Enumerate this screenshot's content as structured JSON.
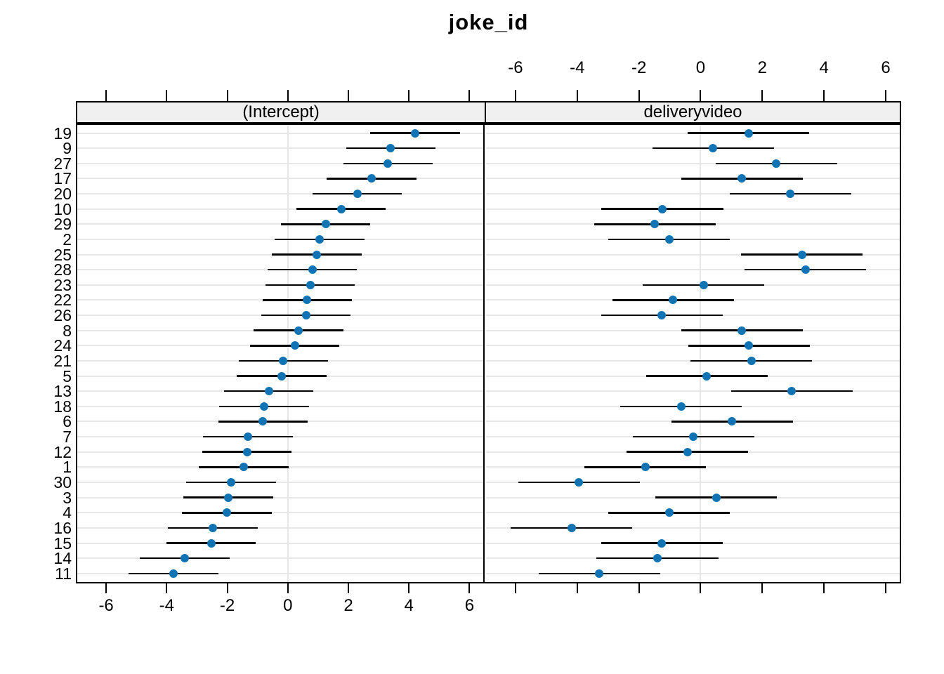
{
  "chart_data": {
    "type": "scatter",
    "subtype": "dotplot-caterpillar-with-error-bars",
    "title": "joke_id",
    "orientation": "horizontal",
    "panels": [
      {
        "label": "(Intercept)",
        "ci_halfwidth": 1.48
      },
      {
        "label": "deliveryvideo",
        "ci_halfwidth": 1.97
      }
    ],
    "x_axis": {
      "ticks": [
        -6,
        -4,
        -2,
        0,
        2,
        4,
        6
      ],
      "tick_labels": [
        "-6",
        "-4",
        "-2",
        "0",
        "2",
        "4",
        "6"
      ],
      "xlim": [
        -7.0,
        6.5
      ],
      "bottom_labels_panel": 0,
      "top_labels_panel": 1
    },
    "y_categories": [
      "19",
      "9",
      "27",
      "17",
      "20",
      "10",
      "29",
      "2",
      "25",
      "28",
      "23",
      "22",
      "26",
      "8",
      "24",
      "21",
      "5",
      "13",
      "18",
      "6",
      "7",
      "12",
      "1",
      "30",
      "3",
      "4",
      "16",
      "15",
      "14",
      "11"
    ],
    "rows": [
      {
        "id": "19",
        "intercept": {
          "lo": 2.73,
          "est": 4.21,
          "hi": 5.69
        },
        "deliveryvideo": {
          "lo": -0.42,
          "est": 1.55,
          "hi": 3.52
        }
      },
      {
        "id": "9",
        "intercept": {
          "lo": 1.92,
          "est": 3.4,
          "hi": 4.88
        },
        "deliveryvideo": {
          "lo": -1.56,
          "est": 0.41,
          "hi": 2.38
        }
      },
      {
        "id": "27",
        "intercept": {
          "lo": 1.83,
          "est": 3.31,
          "hi": 4.79
        },
        "deliveryvideo": {
          "lo": 0.48,
          "est": 2.45,
          "hi": 4.42
        }
      },
      {
        "id": "17",
        "intercept": {
          "lo": 1.28,
          "est": 2.76,
          "hi": 4.24
        },
        "deliveryvideo": {
          "lo": -0.63,
          "est": 1.34,
          "hi": 3.31
        }
      },
      {
        "id": "20",
        "intercept": {
          "lo": 0.81,
          "est": 2.29,
          "hi": 3.77
        },
        "deliveryvideo": {
          "lo": 0.94,
          "est": 2.91,
          "hi": 4.88
        }
      },
      {
        "id": "10",
        "intercept": {
          "lo": 0.28,
          "est": 1.76,
          "hi": 3.24
        },
        "deliveryvideo": {
          "lo": -3.21,
          "est": -1.24,
          "hi": 0.73
        }
      },
      {
        "id": "29",
        "intercept": {
          "lo": -0.23,
          "est": 1.25,
          "hi": 2.73
        },
        "deliveryvideo": {
          "lo": -3.45,
          "est": -1.48,
          "hi": 0.49
        }
      },
      {
        "id": "2",
        "intercept": {
          "lo": -0.43,
          "est": 1.05,
          "hi": 2.53
        },
        "deliveryvideo": {
          "lo": -2.99,
          "est": -1.02,
          "hi": 0.95
        }
      },
      {
        "id": "25",
        "intercept": {
          "lo": -0.52,
          "est": 0.96,
          "hi": 2.44
        },
        "deliveryvideo": {
          "lo": 1.31,
          "est": 3.28,
          "hi": 5.25
        }
      },
      {
        "id": "28",
        "intercept": {
          "lo": -0.67,
          "est": 0.81,
          "hi": 2.29
        },
        "deliveryvideo": {
          "lo": 1.43,
          "est": 3.4,
          "hi": 5.37
        }
      },
      {
        "id": "23",
        "intercept": {
          "lo": -0.74,
          "est": 0.74,
          "hi": 2.22
        },
        "deliveryvideo": {
          "lo": -1.87,
          "est": 0.1,
          "hi": 2.07
        }
      },
      {
        "id": "22",
        "intercept": {
          "lo": -0.84,
          "est": 0.64,
          "hi": 2.12
        },
        "deliveryvideo": {
          "lo": -2.86,
          "est": -0.89,
          "hi": 1.08
        }
      },
      {
        "id": "26",
        "intercept": {
          "lo": -0.88,
          "est": 0.6,
          "hi": 2.08
        },
        "deliveryvideo": {
          "lo": -3.23,
          "est": -1.26,
          "hi": 0.71
        }
      },
      {
        "id": "8",
        "intercept": {
          "lo": -1.12,
          "est": 0.36,
          "hi": 1.84
        },
        "deliveryvideo": {
          "lo": -0.63,
          "est": 1.34,
          "hi": 3.31
        }
      },
      {
        "id": "24",
        "intercept": {
          "lo": -1.25,
          "est": 0.23,
          "hi": 1.71
        },
        "deliveryvideo": {
          "lo": -0.4,
          "est": 1.57,
          "hi": 3.54
        }
      },
      {
        "id": "21",
        "intercept": {
          "lo": -1.63,
          "est": -0.15,
          "hi": 1.33
        },
        "deliveryvideo": {
          "lo": -0.32,
          "est": 1.65,
          "hi": 3.62
        }
      },
      {
        "id": "5",
        "intercept": {
          "lo": -1.69,
          "est": -0.21,
          "hi": 1.27
        },
        "deliveryvideo": {
          "lo": -1.77,
          "est": 0.2,
          "hi": 2.17
        }
      },
      {
        "id": "13",
        "intercept": {
          "lo": -2.11,
          "est": -0.63,
          "hi": 0.85
        },
        "deliveryvideo": {
          "lo": 0.98,
          "est": 2.95,
          "hi": 4.92
        }
      },
      {
        "id": "18",
        "intercept": {
          "lo": -2.26,
          "est": -0.78,
          "hi": 0.7
        },
        "deliveryvideo": {
          "lo": -2.6,
          "est": -0.63,
          "hi": 1.34
        }
      },
      {
        "id": "6",
        "intercept": {
          "lo": -2.3,
          "est": -0.82,
          "hi": 0.66
        },
        "deliveryvideo": {
          "lo": -0.95,
          "est": 1.02,
          "hi": 2.99
        }
      },
      {
        "id": "7",
        "intercept": {
          "lo": -2.79,
          "est": -1.31,
          "hi": 0.17
        },
        "deliveryvideo": {
          "lo": -2.2,
          "est": -0.23,
          "hi": 1.74
        }
      },
      {
        "id": "12",
        "intercept": {
          "lo": -2.83,
          "est": -1.35,
          "hi": 0.13
        },
        "deliveryvideo": {
          "lo": -2.4,
          "est": -0.43,
          "hi": 1.54
        }
      },
      {
        "id": "1",
        "intercept": {
          "lo": -2.94,
          "est": -1.46,
          "hi": 0.02
        },
        "deliveryvideo": {
          "lo": -3.76,
          "est": -1.79,
          "hi": 0.18
        }
      },
      {
        "id": "30",
        "intercept": {
          "lo": -3.36,
          "est": -1.88,
          "hi": -0.4
        },
        "deliveryvideo": {
          "lo": -5.91,
          "est": -3.94,
          "hi": -1.97
        }
      },
      {
        "id": "3",
        "intercept": {
          "lo": -3.45,
          "est": -1.97,
          "hi": -0.49
        },
        "deliveryvideo": {
          "lo": -1.46,
          "est": 0.51,
          "hi": 2.48
        }
      },
      {
        "id": "4",
        "intercept": {
          "lo": -3.49,
          "est": -2.01,
          "hi": -0.53
        },
        "deliveryvideo": {
          "lo": -2.99,
          "est": -1.02,
          "hi": 0.95
        }
      },
      {
        "id": "16",
        "intercept": {
          "lo": -3.96,
          "est": -2.48,
          "hi": -1.0
        },
        "deliveryvideo": {
          "lo": -6.15,
          "est": -4.18,
          "hi": -2.21
        }
      },
      {
        "id": "15",
        "intercept": {
          "lo": -4.01,
          "est": -2.53,
          "hi": -1.05
        },
        "deliveryvideo": {
          "lo": -3.23,
          "est": -1.26,
          "hi": 0.71
        }
      },
      {
        "id": "14",
        "intercept": {
          "lo": -4.89,
          "est": -3.41,
          "hi": -1.93
        },
        "deliveryvideo": {
          "lo": -3.37,
          "est": -1.4,
          "hi": 0.57
        }
      },
      {
        "id": "11",
        "intercept": {
          "lo": -5.25,
          "est": -3.77,
          "hi": -2.29
        },
        "deliveryvideo": {
          "lo": -5.25,
          "est": -3.28,
          "hi": -1.31
        }
      }
    ],
    "grid": {
      "horizontal": "one line per row",
      "vertical": "single line at 0"
    },
    "legend_position": "none"
  },
  "colors": {
    "dot": "#1074b4",
    "ci_bar": "#000000",
    "gridline": "#e7e7e7",
    "strip_bg": "#f0f0f0",
    "panel_border": "#000000",
    "background": "#ffffff",
    "text": "#000000"
  }
}
